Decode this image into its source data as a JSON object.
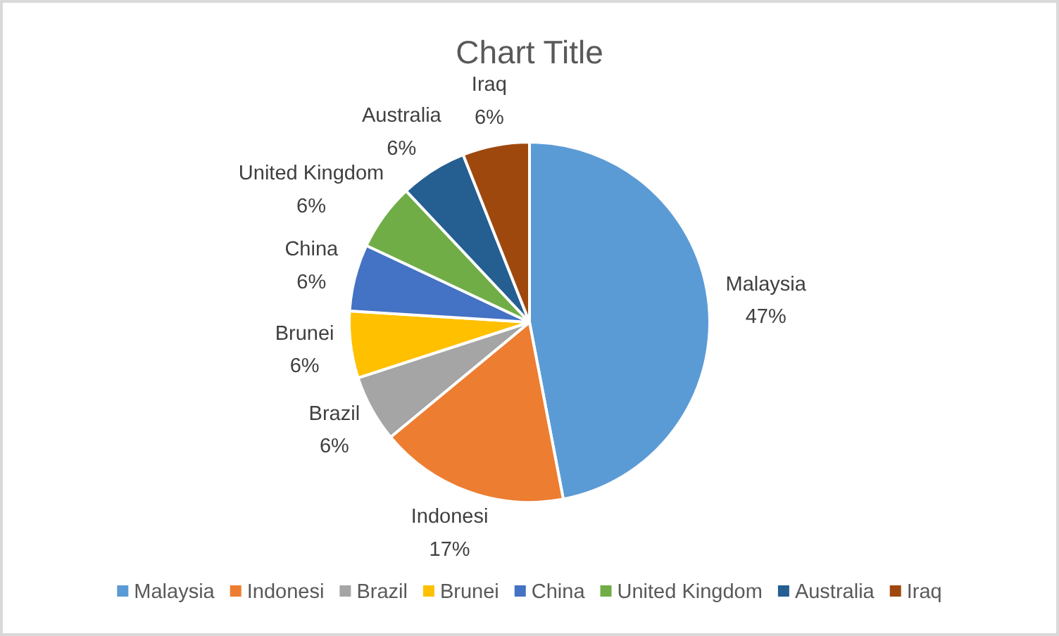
{
  "chart_data": {
    "type": "pie",
    "title": "Chart Title",
    "categories": [
      "Malaysia",
      "Indonesi",
      "Brazil",
      "Brunei",
      "China",
      "United Kingdom",
      "Australia",
      "Iraq"
    ],
    "values": [
      47,
      17,
      6,
      6,
      6,
      6,
      6,
      6
    ],
    "value_labels": [
      "47%",
      "17%",
      "6%",
      "6%",
      "6%",
      "6%",
      "6%",
      "6%"
    ],
    "colors": [
      "#5b9bd5",
      "#ed7d31",
      "#a5a5a5",
      "#ffc000",
      "#4472c4",
      "#70ad47",
      "#255e91",
      "#9e480e"
    ],
    "legend": "bottom"
  }
}
